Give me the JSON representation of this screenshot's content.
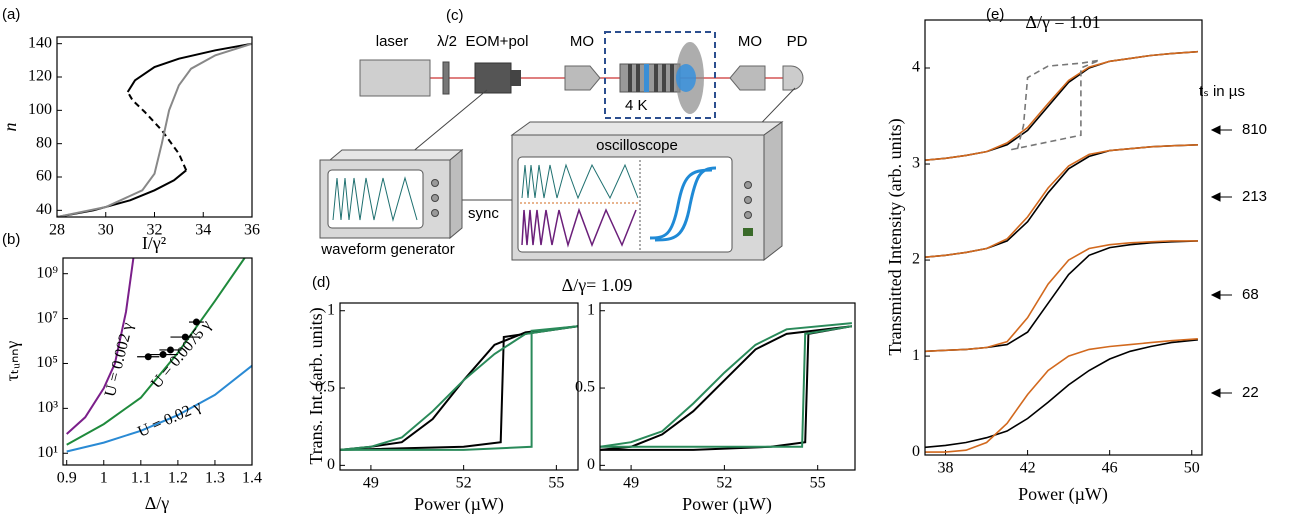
{
  "chart_data": [
    {
      "type": "line",
      "panel": "(a)",
      "xlabel": "I/γ²",
      "ylabel": "n",
      "xlim": [
        28,
        36
      ],
      "ylim": [
        36,
        144
      ],
      "xticks": [
        28,
        30,
        32,
        34,
        36
      ],
      "yticks": [
        40,
        60,
        80,
        100,
        120,
        140
      ],
      "series": [
        {
          "color": "#000000",
          "x": [
            28,
            29.5,
            31,
            32,
            32.8,
            33.3
          ],
          "values": [
            36,
            40,
            46,
            52,
            58,
            64
          ]
        },
        {
          "color": "#000000",
          "dash": true,
          "x": [
            33.3,
            33,
            32.3,
            31.6,
            31.1,
            30.9
          ],
          "values": [
            64,
            74,
            88,
            99,
            106,
            111
          ]
        },
        {
          "color": "#000000",
          "x": [
            30.9,
            31.2,
            32,
            33,
            34.5,
            36
          ],
          "values": [
            111,
            118,
            126,
            131,
            136,
            140
          ]
        },
        {
          "color": "#888888",
          "x": [
            28,
            30,
            31.5,
            32,
            32.3,
            32.6,
            33,
            33.5,
            34.5,
            36
          ],
          "values": [
            36,
            42,
            52,
            62,
            80,
            100,
            115,
            125,
            133,
            140
          ]
        }
      ]
    },
    {
      "type": "line",
      "panel": "(b)",
      "xlabel": "Δ/γ",
      "ylabel": "τₜᵤₙₙγ",
      "log_y": true,
      "xlim": [
        0.89,
        1.4
      ],
      "ylim": [
        3,
        5000000000
      ],
      "xticks": [
        0.9,
        1,
        1.1,
        1.2,
        1.3,
        1.4
      ],
      "yticks": [
        {
          "value": 10,
          "label": "10¹"
        },
        {
          "value": 1000,
          "label": "10³"
        },
        {
          "value": 100000,
          "label": "10⁵"
        },
        {
          "value": 10000000,
          "label": "10⁷"
        },
        {
          "value": 1000000000,
          "label": "10⁹"
        }
      ],
      "annotations": [
        "U = 0.002 γ",
        "U = 0.0075 γ",
        "U = 0.02 γ"
      ],
      "series": [
        {
          "color": "#7b1f8a",
          "x": [
            0.9,
            0.95,
            1,
            1.03,
            1.06,
            1.08
          ],
          "values": [
            72,
            400,
            8000,
            100000,
            20000000,
            5000000000
          ]
        },
        {
          "color": "#1f8a3c",
          "x": [
            0.9,
            1,
            1.1,
            1.2,
            1.3,
            1.38
          ],
          "values": [
            24,
            200,
            3000,
            300000,
            60000000,
            5000000000
          ]
        },
        {
          "color": "#2a8ad4",
          "x": [
            0.9,
            1,
            1.1,
            1.2,
            1.3,
            1.4
          ],
          "values": [
            12,
            30,
            100,
            500,
            4000,
            80000
          ]
        }
      ],
      "points": {
        "color": "#000000",
        "x": [
          1.12,
          1.16,
          1.18,
          1.22,
          1.25
        ],
        "values": [
          200000,
          250000,
          400000,
          1500000,
          7000000
        ],
        "xerr": [
          0.03,
          0.04,
          0.03,
          0.04,
          0.02
        ]
      }
    },
    {
      "type": "line",
      "panel": "(d)",
      "title": "Δ/γ= 1.09",
      "xlabel": "Power (µW)",
      "ylabel": "Trans. Int. (arb. units)",
      "xlim": [
        48,
        55.7
      ],
      "ylim": [
        -0.03,
        1.05
      ],
      "xticks": [
        49,
        52,
        55
      ],
      "yticks": [
        0,
        0.5,
        1
      ],
      "series": [
        {
          "color": "#000000",
          "x": [
            48,
            52,
            53.2,
            53.3,
            55.7
          ],
          "values": [
            0.1,
            0.12,
            0.15,
            0.83,
            0.9
          ]
        },
        {
          "color": "#000000",
          "x": [
            55.7,
            54,
            53,
            52,
            51,
            50,
            49,
            48
          ],
          "values": [
            0.9,
            0.86,
            0.78,
            0.55,
            0.3,
            0.15,
            0.12,
            0.1
          ]
        },
        {
          "color": "#2a8a5a",
          "x": [
            48,
            50,
            52,
            54.2,
            54.2,
            55.7
          ],
          "values": [
            0.1,
            0.1,
            0.1,
            0.12,
            0.87,
            0.9
          ]
        },
        {
          "color": "#2a8a5a",
          "x": [
            55.7,
            54,
            53,
            52,
            51,
            50,
            49,
            48
          ],
          "values": [
            0.9,
            0.85,
            0.72,
            0.55,
            0.35,
            0.18,
            0.12,
            0.1
          ]
        }
      ]
    },
    {
      "type": "line",
      "xlabel": "Power (µW)",
      "xlim": [
        48,
        56.2
      ],
      "ylim": [
        -0.03,
        1.05
      ],
      "xticks": [
        49,
        52,
        55
      ],
      "yticks": [
        0,
        0.5,
        1
      ],
      "series": [
        {
          "color": "#000000",
          "x": [
            48,
            51,
            53.5,
            54.6,
            54.7,
            56.1
          ],
          "values": [
            0.1,
            0.1,
            0.12,
            0.15,
            0.85,
            0.9
          ]
        },
        {
          "color": "#000000",
          "x": [
            56.1,
            54,
            53,
            52,
            51,
            50,
            49,
            48
          ],
          "values": [
            0.9,
            0.85,
            0.75,
            0.55,
            0.35,
            0.2,
            0.12,
            0.1
          ]
        },
        {
          "color": "#2a8a5a",
          "x": [
            48,
            50,
            52,
            54.5,
            54.6,
            56.1
          ],
          "values": [
            0.12,
            0.12,
            0.12,
            0.12,
            0.85,
            0.9
          ]
        },
        {
          "color": "#2a8a5a",
          "x": [
            56.1,
            54,
            53,
            52,
            51,
            50,
            49,
            48
          ],
          "values": [
            0.92,
            0.88,
            0.78,
            0.6,
            0.4,
            0.22,
            0.15,
            0.12
          ]
        }
      ]
    },
    {
      "type": "line",
      "panel": "(e)",
      "title": "Δ/γ = 1.01",
      "xlabel": "Power (µW)",
      "ylabel": "Transmitted Intensity (arb. units)",
      "xlim": [
        37,
        50.5
      ],
      "ylim": [
        -0.03,
        4.5
      ],
      "xticks": [
        38,
        42,
        46,
        50
      ],
      "yticks": [
        0,
        1,
        2,
        3,
        4
      ],
      "annotations": [
        "tₛ in µs"
      ],
      "arrow_labels": [
        810,
        213,
        68,
        22
      ],
      "series": [
        {
          "color": "#000000",
          "x": [
            37,
            38,
            39,
            40,
            41,
            42,
            43,
            44,
            45,
            46,
            47,
            48,
            49,
            50.3
          ],
          "values": [
            0.05,
            0.07,
            0.1,
            0.15,
            0.22,
            0.35,
            0.52,
            0.7,
            0.85,
            0.97,
            1.05,
            1.1,
            1.14,
            1.17
          ]
        },
        {
          "color": "#d2691e",
          "x": [
            37,
            38,
            39,
            40,
            41,
            42,
            43,
            44,
            45,
            46,
            47,
            48,
            49,
            50.3
          ],
          "values": [
            0,
            0,
            0.02,
            0.1,
            0.3,
            0.6,
            0.85,
            1,
            1.07,
            1.1,
            1.12,
            1.14,
            1.16,
            1.18
          ]
        },
        {
          "color": "#000000",
          "x": [
            37,
            38,
            39,
            40,
            41,
            42,
            43,
            44,
            45,
            46,
            47,
            48,
            49,
            50.3
          ],
          "values": [
            1.05,
            1.06,
            1.07,
            1.09,
            1.12,
            1.25,
            1.55,
            1.85,
            2.05,
            2.13,
            2.16,
            2.18,
            2.19,
            2.2
          ]
        },
        {
          "color": "#d2691e",
          "x": [
            37,
            38,
            39,
            40,
            41,
            42,
            43,
            44,
            45,
            46,
            47,
            48,
            49,
            50.3
          ],
          "values": [
            1.05,
            1.06,
            1.07,
            1.09,
            1.15,
            1.4,
            1.75,
            2,
            2.12,
            2.16,
            2.18,
            2.19,
            2.2,
            2.2
          ]
        },
        {
          "color": "#000000",
          "x": [
            37,
            38,
            39,
            40,
            41,
            42,
            43,
            44,
            45,
            46,
            47,
            48,
            49,
            50.3
          ],
          "values": [
            2.03,
            2.05,
            2.08,
            2.12,
            2.2,
            2.4,
            2.7,
            2.95,
            3.08,
            3.14,
            3.16,
            3.18,
            3.19,
            3.2
          ]
        },
        {
          "color": "#d2691e",
          "x": [
            37,
            38,
            39,
            40,
            41,
            42,
            43,
            44,
            45,
            46,
            47,
            48,
            49,
            50.3
          ],
          "values": [
            2.03,
            2.05,
            2.08,
            2.12,
            2.22,
            2.45,
            2.75,
            2.98,
            3.1,
            3.14,
            3.16,
            3.18,
            3.19,
            3.2
          ]
        },
        {
          "color": "#000000",
          "x": [
            37,
            38,
            39,
            40,
            41,
            42,
            43,
            44,
            45,
            46,
            47,
            48,
            49,
            50.3
          ],
          "values": [
            3.04,
            3.06,
            3.09,
            3.13,
            3.2,
            3.35,
            3.6,
            3.85,
            4,
            4.07,
            4.1,
            4.13,
            4.15,
            4.17
          ]
        },
        {
          "color": "#d2691e",
          "x": [
            37,
            38,
            39,
            40,
            41,
            42,
            43,
            44,
            45,
            46,
            47,
            48,
            49,
            50.3
          ],
          "values": [
            3.04,
            3.06,
            3.09,
            3.13,
            3.22,
            3.38,
            3.63,
            3.87,
            4.01,
            4.07,
            4.1,
            4.13,
            4.15,
            4.17
          ]
        },
        {
          "color": "#777777",
          "dash": true,
          "x": [
            41.2,
            44.6,
            44.6,
            45.5,
            44.6,
            43,
            42,
            41.8,
            41.5
          ],
          "values": [
            3.15,
            3.3,
            4,
            4.08,
            4.05,
            4.02,
            3.9,
            3.4,
            3.15
          ]
        }
      ]
    }
  ],
  "diagram": {
    "panel": "(c)",
    "laser": "laser",
    "half_wave_plate": "λ/2",
    "eom": "EOM+pol",
    "objective_in": "MO",
    "cryostat": "4 K",
    "objective_out": "MO",
    "detector": "PD",
    "oscilloscope": "oscilloscope",
    "sync": "sync",
    "generator": "waveform generator"
  }
}
